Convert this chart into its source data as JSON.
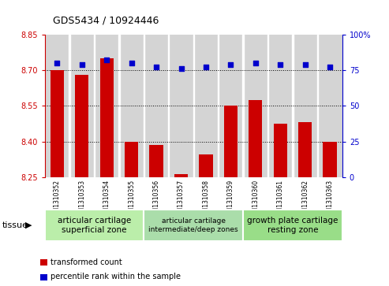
{
  "title": "GDS5434 / 10924446",
  "samples": [
    "GSM1310352",
    "GSM1310353",
    "GSM1310354",
    "GSM1310355",
    "GSM1310356",
    "GSM1310357",
    "GSM1310358",
    "GSM1310359",
    "GSM1310360",
    "GSM1310361",
    "GSM1310362",
    "GSM1310363"
  ],
  "bar_values": [
    8.7,
    8.68,
    8.75,
    8.4,
    8.385,
    8.265,
    8.345,
    8.55,
    8.575,
    8.475,
    8.48,
    8.4
  ],
  "percentile_values": [
    80,
    79,
    82,
    80,
    77,
    76,
    77,
    79,
    80,
    79,
    79,
    77
  ],
  "ylim_left": [
    8.25,
    8.85
  ],
  "ylim_right": [
    0,
    100
  ],
  "yticks_left": [
    8.25,
    8.4,
    8.55,
    8.7,
    8.85
  ],
  "yticks_right": [
    0,
    25,
    50,
    75,
    100
  ],
  "bar_color": "#cc0000",
  "percentile_color": "#0000cc",
  "tissue_groups": [
    {
      "label": "articular cartilage\nsuperficial zone",
      "start": 0,
      "end": 4,
      "color": "#bbeeaa",
      "fontsize": 7.5
    },
    {
      "label": "articular cartilage\nintermediate/deep zones",
      "start": 4,
      "end": 8,
      "color": "#aaddaa",
      "fontsize": 6.5
    },
    {
      "label": "growth plate cartilage\nresting zone",
      "start": 8,
      "end": 12,
      "color": "#99dd88",
      "fontsize": 7.5
    }
  ],
  "bar_width": 0.55,
  "tissue_label": "tissue",
  "legend_items": [
    {
      "color": "#cc0000",
      "label": "transformed count"
    },
    {
      "color": "#0000cc",
      "label": "percentile rank within the sample"
    }
  ],
  "col_bg_color": "#d4d4d4",
  "plot_bg_color": "#ffffff"
}
